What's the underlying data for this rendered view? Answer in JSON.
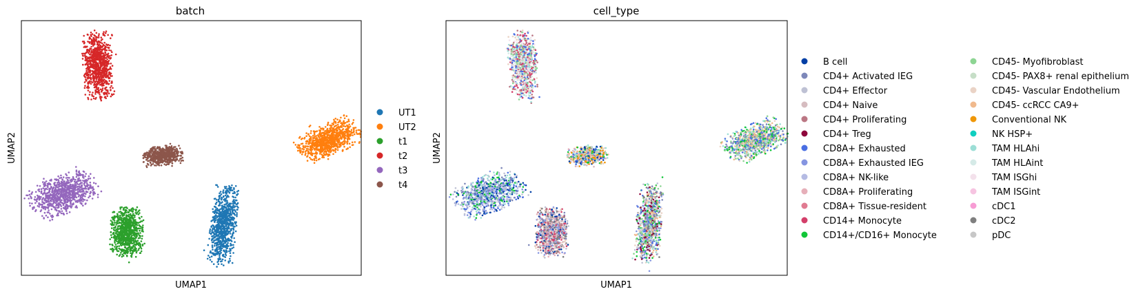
{
  "chart_data": [
    {
      "type": "scatter",
      "title": "batch",
      "xlabel": "UMAP1",
      "ylabel": "UMAP2",
      "grid": false,
      "legend_position": "right",
      "ticks": "none",
      "series": [
        {
          "name": "UT1",
          "color": "#1f77b4",
          "cluster": {
            "center": [
              0.595,
              0.8
            ],
            "spread": [
              0.035,
              0.145
            ],
            "tilt": 0.08,
            "count": 900
          }
        },
        {
          "name": "UT2",
          "color": "#ff7f0e",
          "cluster": {
            "center": [
              0.905,
              0.47
            ],
            "spread": [
              0.09,
              0.055
            ],
            "tilt": -0.6,
            "count": 900
          }
        },
        {
          "name": "t1",
          "color": "#2ca02c",
          "cluster": {
            "center": [
              0.31,
              0.83
            ],
            "spread": [
              0.045,
              0.09
            ],
            "tilt": 0.0,
            "count": 900
          }
        },
        {
          "name": "t2",
          "color": "#d62728",
          "cluster": {
            "center": [
              0.225,
              0.175
            ],
            "spread": [
              0.04,
              0.125
            ],
            "tilt": -0.05,
            "count": 900
          }
        },
        {
          "name": "t3",
          "color": "#9467bd",
          "cluster": {
            "center": [
              0.125,
              0.68
            ],
            "spread": [
              0.1,
              0.065
            ],
            "tilt": -0.55,
            "count": 900
          }
        },
        {
          "name": "t4",
          "color": "#8c564b",
          "cluster": {
            "center": [
              0.415,
              0.53
            ],
            "spread": [
              0.055,
              0.035
            ],
            "tilt": -0.15,
            "count": 600
          }
        }
      ]
    },
    {
      "type": "scatter",
      "title": "cell_type",
      "xlabel": "UMAP1",
      "ylabel": "UMAP2",
      "grid": false,
      "legend_position": "right",
      "ticks": "none",
      "clusters": [
        {
          "center": [
            0.595,
            0.8
          ],
          "spread": [
            0.035,
            0.145
          ],
          "tilt": 0.08,
          "count": 900,
          "mix": [
            "CD4+ Activated IEG",
            "CD8A+ Exhausted IEG",
            "CD45- Myofibroblast",
            "TAM HLAhi",
            "CD8A+ Exhausted",
            "CD45- Vascular Endothelium",
            "CD4+ Effector",
            "CD14+/CD16+ Monocyte",
            "cDC2",
            "CD4+ Treg",
            "CD45- ccRCC CA9+"
          ]
        },
        {
          "name": "UT2",
          "center": [
            0.905,
            0.47
          ],
          "spread": [
            0.09,
            0.055
          ],
          "tilt": -0.6,
          "count": 900,
          "mix": [
            "CD45- ccRCC CA9+",
            "CD45- Myofibroblast",
            "CD14+/CD16+ Monocyte",
            "CD8A+ Exhausted",
            "CD4+ Activated IEG",
            "CD45- Vascular Endothelium",
            "TAM HLAhi"
          ]
        },
        {
          "center": [
            0.31,
            0.83
          ],
          "spread": [
            0.045,
            0.09
          ],
          "tilt": 0.0,
          "count": 900,
          "mix": [
            "CD4+ Activated IEG",
            "CD4+ Effector",
            "CD4+ Naive",
            "CD8A+ Exhausted IEG",
            "CD4+ Proliferating",
            "CD8A+ Proliferating",
            "CD45- Vascular Endothelium",
            "CD14+ Monocyte",
            "B cell",
            "cDC2"
          ]
        },
        {
          "center": [
            0.225,
            0.175
          ],
          "spread": [
            0.04,
            0.125
          ],
          "tilt": -0.05,
          "count": 900,
          "mix": [
            "TAM HLAhi",
            "TAM HLAint",
            "CD45- Myofibroblast",
            "CD4+ Proliferating",
            "CD8A+ Exhausted",
            "CD45- Vascular Endothelium",
            "CD14+ Monocyte",
            "TAM ISGhi"
          ]
        },
        {
          "center": [
            0.125,
            0.68
          ],
          "spread": [
            0.1,
            0.065
          ],
          "tilt": -0.55,
          "count": 900,
          "mix": [
            "CD8A+ Exhausted",
            "CD8A+ Exhausted IEG",
            "B cell",
            "CD8A+ NK-like",
            "CD4+ Effector",
            "TAM HLAhi",
            "CD14+/CD16+ Monocyte",
            "CD4+ Activated IEG"
          ]
        },
        {
          "center": [
            0.415,
            0.53
          ],
          "spread": [
            0.055,
            0.035
          ],
          "tilt": -0.15,
          "count": 600,
          "mix": [
            "CD45- ccRCC CA9+",
            "Conventional NK",
            "CD14+/CD16+ Monocyte",
            "TAM HLAhi",
            "CD4+ Naive",
            "CD8A+ Proliferating",
            "CD45- Vascular Endothelium",
            "B cell",
            "CD8A+ Exhausted"
          ]
        }
      ],
      "categories": [
        {
          "name": "B cell",
          "color": "#023fa5"
        },
        {
          "name": "CD4+ Activated IEG",
          "color": "#7d87b9"
        },
        {
          "name": "CD4+ Effector",
          "color": "#bec1d4"
        },
        {
          "name": "CD4+ Naive",
          "color": "#d6bcc0"
        },
        {
          "name": "CD4+ Proliferating",
          "color": "#bb7784"
        },
        {
          "name": "CD4+ Treg",
          "color": "#8e063b"
        },
        {
          "name": "CD8A+ Exhausted",
          "color": "#4a6fe3"
        },
        {
          "name": "CD8A+ Exhausted IEG",
          "color": "#8595e1"
        },
        {
          "name": "CD8A+ NK-like",
          "color": "#b5bbe3"
        },
        {
          "name": "CD8A+ Proliferating",
          "color": "#e6afb9"
        },
        {
          "name": "CD8A+ Tissue-resident",
          "color": "#e07b91"
        },
        {
          "name": "CD14+ Monocyte",
          "color": "#d33f6a"
        },
        {
          "name": "CD14+/CD16+ Monocyte",
          "color": "#11c638"
        },
        {
          "name": "CD45- Myofibroblast",
          "color": "#8dd593"
        },
        {
          "name": "CD45- PAX8+ renal epithelium",
          "color": "#c6dec7"
        },
        {
          "name": "CD45- Vascular Endothelium",
          "color": "#ead3c6"
        },
        {
          "name": "CD45- ccRCC CA9+",
          "color": "#f0b98d"
        },
        {
          "name": "Conventional NK",
          "color": "#ef9708"
        },
        {
          "name": "NK HSP+",
          "color": "#0fcfc0"
        },
        {
          "name": "TAM HLAhi",
          "color": "#9cded6"
        },
        {
          "name": "TAM HLAint",
          "color": "#d5eae7"
        },
        {
          "name": "TAM ISGhi",
          "color": "#f3e1eb"
        },
        {
          "name": "TAM ISGint",
          "color": "#f6c4e1"
        },
        {
          "name": "cDC1",
          "color": "#f79cd4"
        },
        {
          "name": "cDC2",
          "color": "#7f7f7f"
        },
        {
          "name": "pDC",
          "color": "#c7c7c7"
        }
      ]
    }
  ]
}
